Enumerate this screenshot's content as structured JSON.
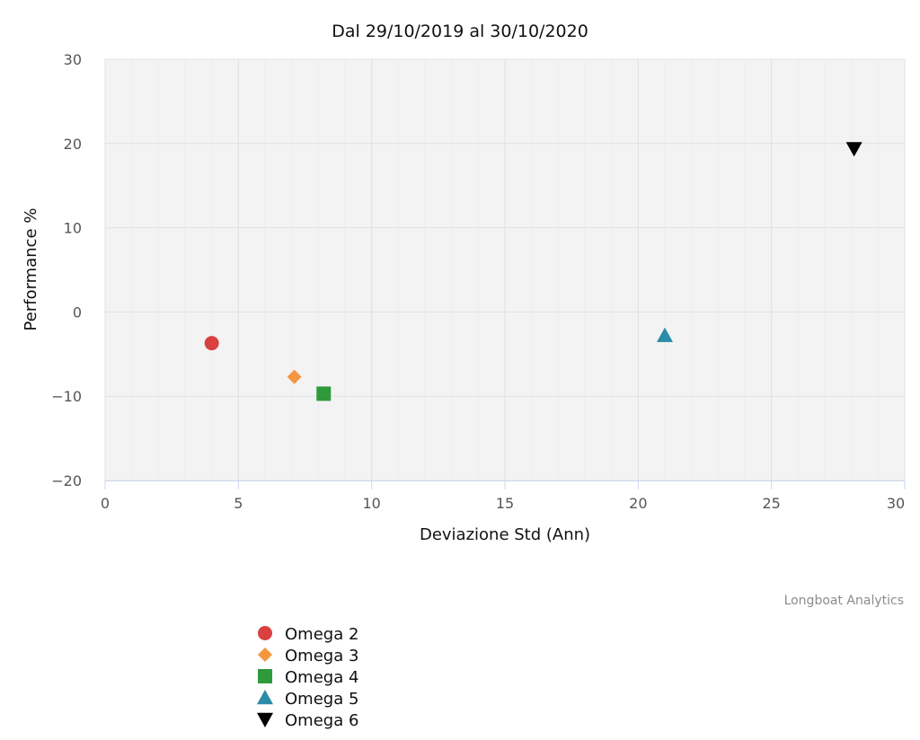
{
  "chart_data": {
    "type": "scatter",
    "title": "Dal 29/10/2019 al 30/10/2020",
    "xlabel": "Deviazione Std (Ann)",
    "ylabel": "Performance %",
    "xlim": [
      0,
      30
    ],
    "ylim": [
      -20,
      30
    ],
    "x_ticks": [
      0,
      5,
      10,
      15,
      20,
      25,
      30
    ],
    "y_ticks": [
      30,
      20,
      10,
      0,
      -10,
      -20
    ],
    "x_tick_labels": [
      "0",
      "5",
      "10",
      "15",
      "20",
      "25",
      "30"
    ],
    "y_tick_labels": [
      "30",
      "20",
      "10",
      "0",
      "−10",
      "−20"
    ],
    "grid": true,
    "legend_position": "bottom-left",
    "series": [
      {
        "name": "Omega 2",
        "x": 4.0,
        "y": -3.7,
        "marker": "circle-icon",
        "color": "#d94040"
      },
      {
        "name": "Omega 3",
        "x": 7.1,
        "y": -7.7,
        "marker": "diamond-icon",
        "color": "#f59640"
      },
      {
        "name": "Omega 4",
        "x": 8.2,
        "y": -9.7,
        "marker": "square-icon",
        "color": "#2f9a3c"
      },
      {
        "name": "Omega 5",
        "x": 21.0,
        "y": -2.8,
        "marker": "triangle-up-icon",
        "color": "#2a8ca8"
      },
      {
        "name": "Omega 6",
        "x": 28.1,
        "y": 19.4,
        "marker": "triangle-down-icon",
        "color": "#000000"
      }
    ]
  },
  "credits": "Longboat Analytics",
  "colors": {
    "plot_background": "#f3f3f3",
    "grid_major": "#e0e0e0",
    "grid_minor": "#ececec",
    "axis_line": "#ccd6eb"
  }
}
